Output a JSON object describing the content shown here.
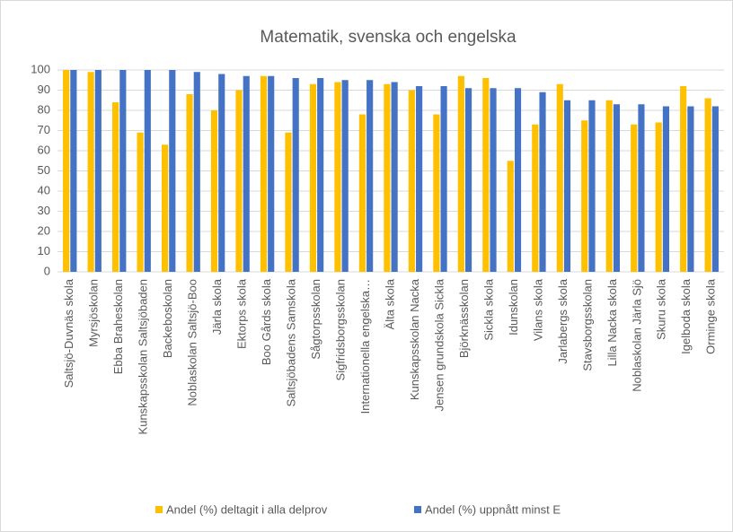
{
  "chart_data": {
    "type": "bar",
    "title": "Matematik, svenska och engelska",
    "categories": [
      "Saltsjö-Duvnäs skola",
      "Myrsjöskolan",
      "Ebba Braheskolan",
      "Kunskapsskolan Saltsjöbaden",
      "Backeboskolan",
      "Noblaskolan Saltsjö-Boo",
      "Järla skola",
      "Ektorps skola",
      "Boo Gårds skola",
      "Saltsjöbadens Samskola",
      "Sågtorpsskolan",
      "Sigfridsborgsskolan",
      "Internationella engelska…",
      "Älta skola",
      "Kunskapsskolan Nacka",
      "Jensen grundskola Sickla",
      "Björknässkolan",
      "Sickla skola",
      "Idunskolan",
      "Vilans skola",
      "Jarlabergs skola",
      "Stavsborgsskolan",
      "Lilla Nacka skola",
      "Noblaskolan Järla Sjö",
      "Skuru skola",
      "Igelboda skola",
      "Orminge skola"
    ],
    "series": [
      {
        "name": "Andel (%) deltagit i alla delprov",
        "color": "#FFC000",
        "values": [
          100,
          99,
          84,
          69,
          63,
          88,
          80,
          90,
          97,
          69,
          93,
          94,
          78,
          93,
          90,
          78,
          97,
          96,
          55,
          73,
          93,
          75,
          85,
          73,
          74,
          92,
          86
        ]
      },
      {
        "name": "Andel (%) uppnått minst E",
        "color": "#4472C4",
        "values": [
          100,
          100,
          100,
          100,
          100,
          99,
          98,
          97,
          97,
          96,
          96,
          95,
          95,
          94,
          92,
          92,
          91,
          91,
          91,
          89,
          85,
          85,
          83,
          83,
          82,
          82,
          82
        ]
      }
    ],
    "ylim": [
      0,
      100
    ],
    "yticks": [
      0,
      10,
      20,
      30,
      40,
      50,
      60,
      70,
      80,
      90,
      100
    ],
    "grid": true,
    "legend": "bottom"
  }
}
